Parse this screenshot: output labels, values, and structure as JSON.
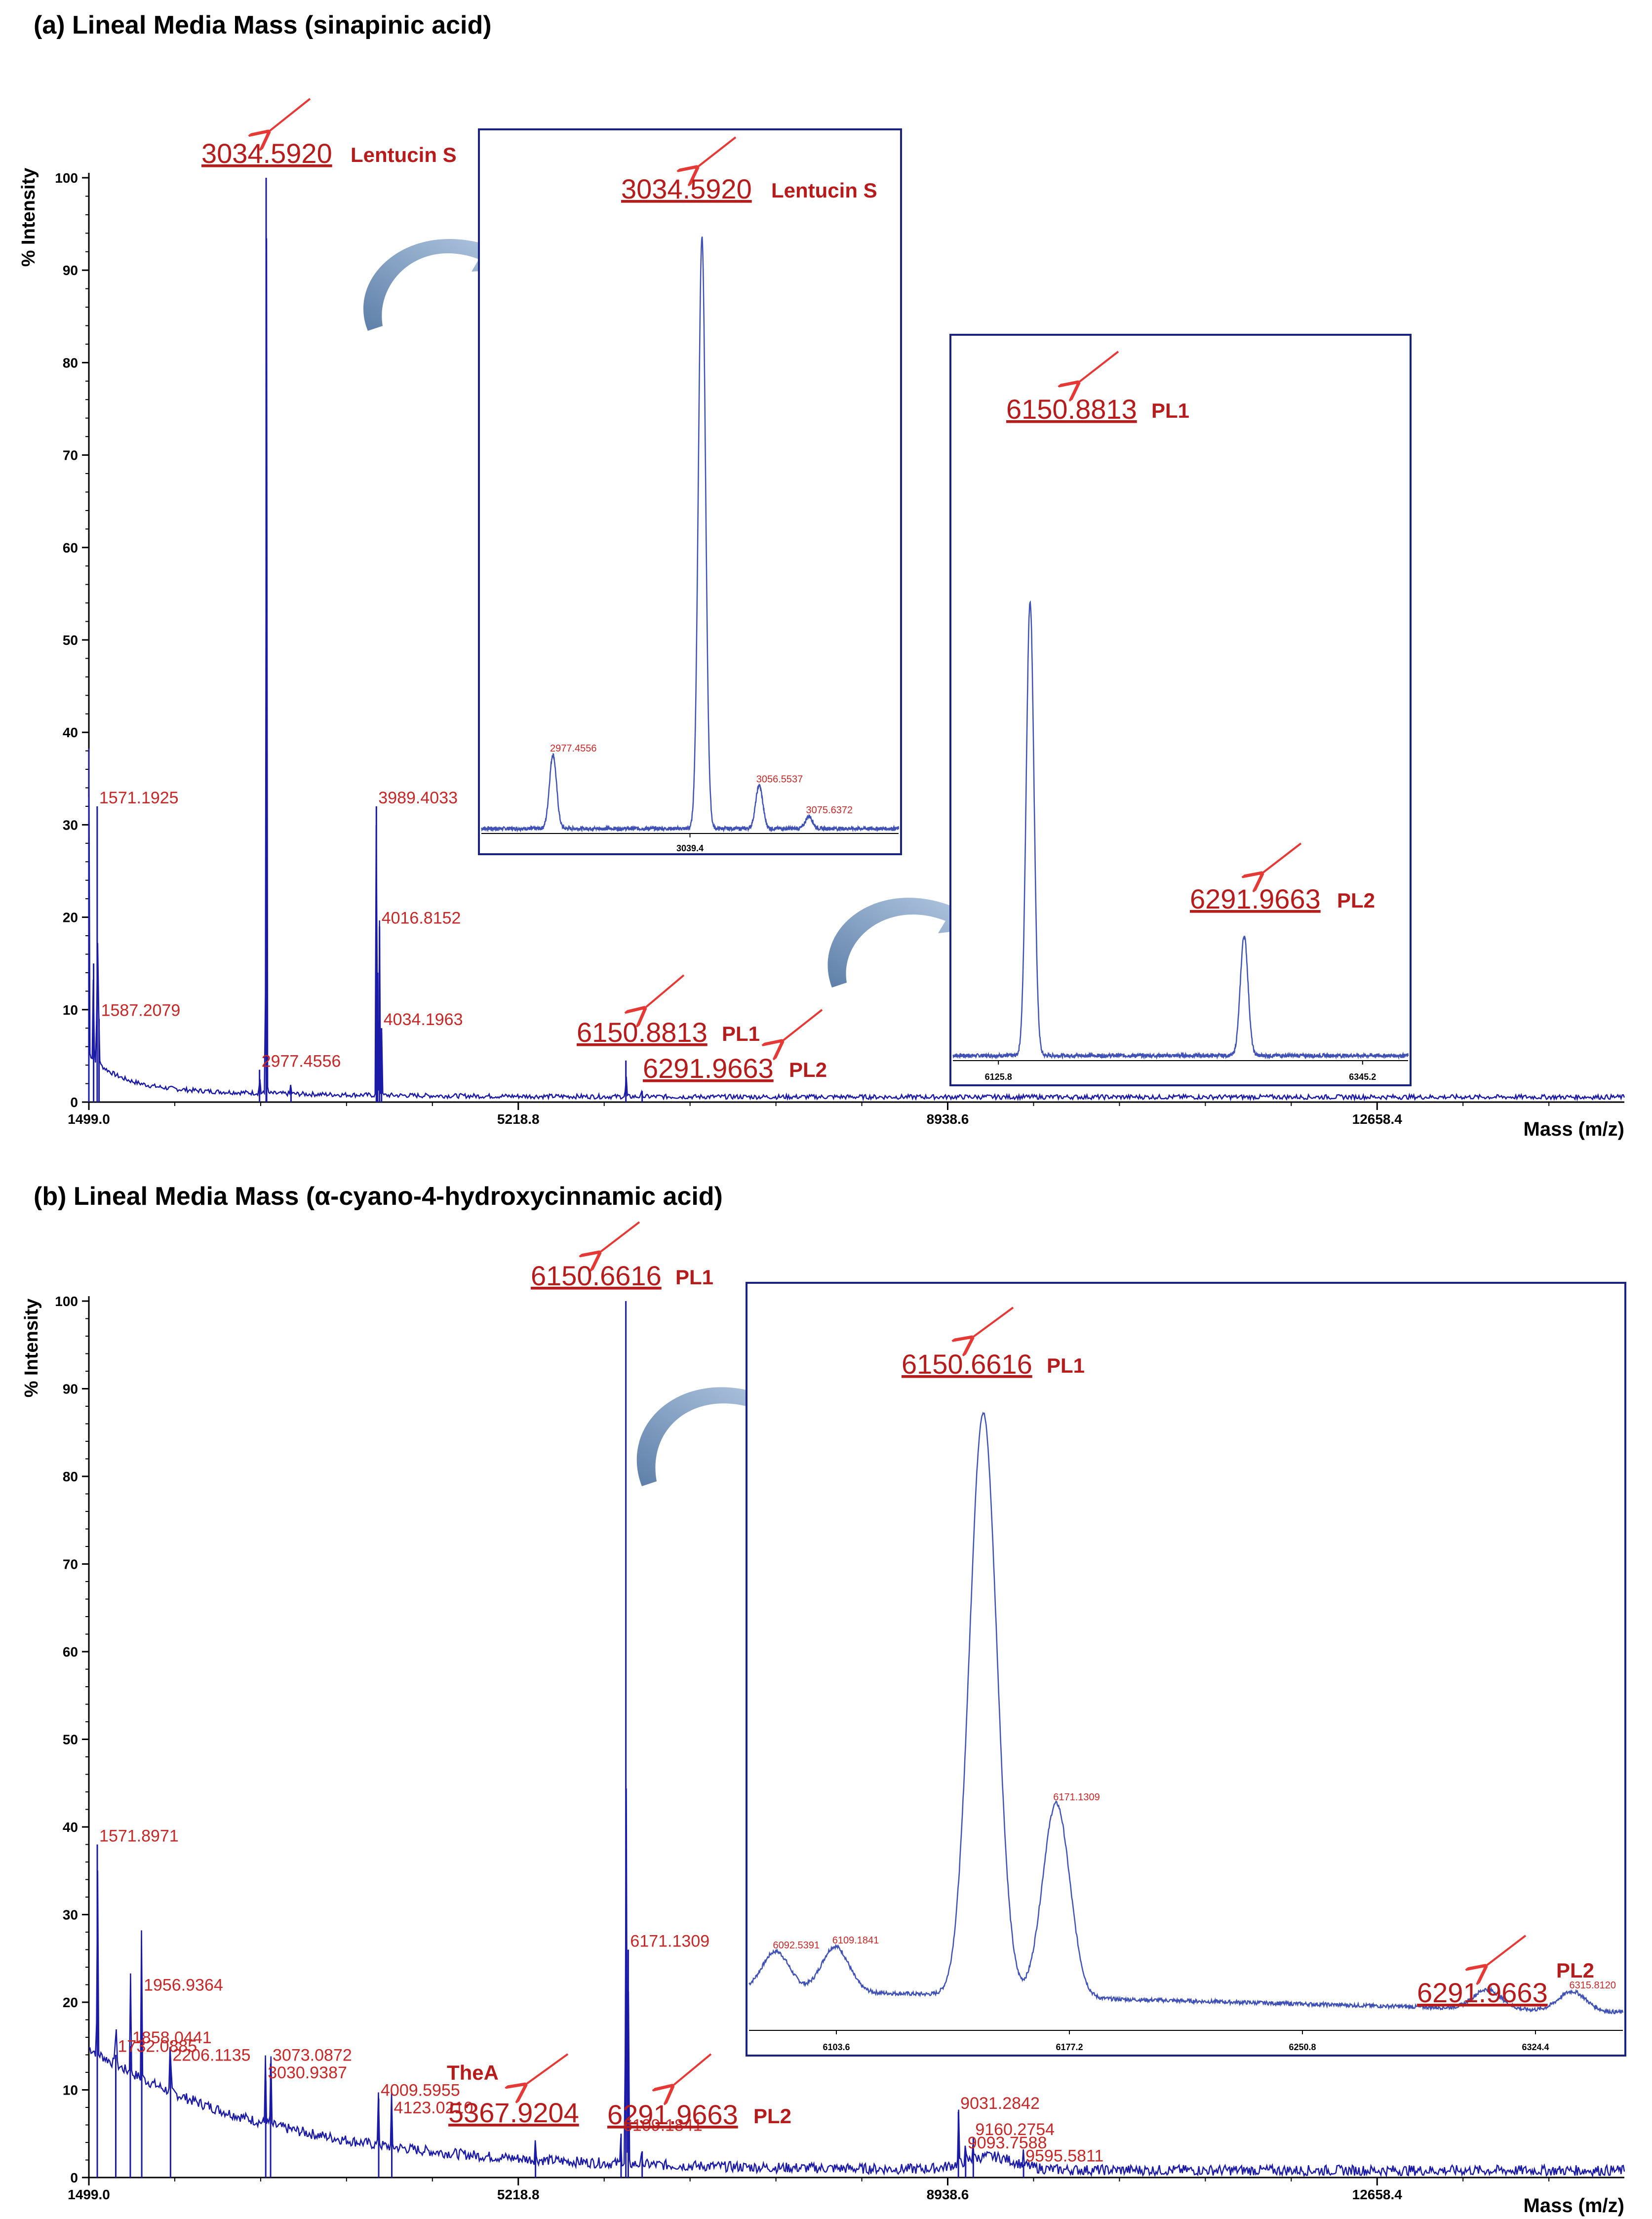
{
  "chart_data": [
    {
      "type": "line",
      "panel": "(a)",
      "title": "Lineal Media Mass (sinapinic acid)",
      "xlabel": "Mass (m/z)",
      "ylabel": "% Intensity",
      "xlim": [
        1499.0,
        14800
      ],
      "ylim": [
        0,
        100
      ],
      "xticks": [
        1499.0,
        5218.8,
        8938.6,
        12658.4
      ],
      "xtick_labels": [
        "1499.0",
        "5218.8",
        "8938.6",
        "12658.4"
      ],
      "yticks": [
        0,
        10,
        20,
        30,
        40,
        50,
        60,
        70,
        80,
        90,
        100
      ],
      "peaks": [
        {
          "x": 1499.0,
          "y": 33
        },
        {
          "x": 1540,
          "y": 15
        },
        {
          "x": 1571.1925,
          "y": 32
        },
        {
          "x": 1587.2079,
          "y": 9
        },
        {
          "x": 2977.4556,
          "y": 3.5
        },
        {
          "x": 3034.592,
          "y": 100
        },
        {
          "x": 3039.0,
          "y": 49
        },
        {
          "x": 3250,
          "y": 1.5
        },
        {
          "x": 3989.4033,
          "y": 32
        },
        {
          "x": 4000,
          "y": 14
        },
        {
          "x": 4016.8152,
          "y": 19
        },
        {
          "x": 4034.1963,
          "y": 8
        },
        {
          "x": 6150.8813,
          "y": 4.5
        },
        {
          "x": 6291.9663,
          "y": 1.2
        }
      ],
      "peak_labels": [
        {
          "text": "1571.1925",
          "x": 1571.1925,
          "y": 32
        },
        {
          "text": "1587.2079",
          "x": 1587.2079,
          "y": 9
        },
        {
          "text": "2977.4556",
          "x": 2977.4556,
          "y": 3.5
        },
        {
          "text": "3989.4033",
          "x": 3989.4033,
          "y": 32
        },
        {
          "text": "4016.8152",
          "x": 4016.8152,
          "y": 19
        },
        {
          "text": "4034.1963",
          "x": 4034.1963,
          "y": 8
        }
      ],
      "callouts": [
        {
          "value": "3034.5920",
          "name": "Lentucin S"
        },
        {
          "value": "6150.8813",
          "name": "PL1"
        },
        {
          "value": "6291.9663",
          "name": "PL2"
        }
      ],
      "insets": [
        {
          "xlim": [
            2950,
            3110
          ],
          "ylim": [
            0,
            100
          ],
          "xtick_labels": [
            "3039.4"
          ],
          "peaks": [
            {
              "x": 2977.4556,
              "y": 12
            },
            {
              "x": 3034.592,
              "y": 96
            },
            {
              "x": 3056.5537,
              "y": 7
            },
            {
              "x": 3075.6372,
              "y": 2
            }
          ],
          "peak_labels": [
            "2977.4556",
            "3056.5537",
            "3075.6372"
          ],
          "callouts": [
            {
              "value": "3034.5920",
              "name": "Lentucin S"
            }
          ]
        },
        {
          "xlim": [
            6100,
            6400
          ],
          "ylim": [
            0,
            100
          ],
          "xtick_labels": [
            "6125.8",
            "6345.2"
          ],
          "peaks": [
            {
              "x": 6150.8813,
              "y": 72
            },
            {
              "x": 6291.9663,
              "y": 19
            }
          ],
          "callouts": [
            {
              "value": "6150.8813",
              "name": "PL1"
            },
            {
              "value": "6291.9663",
              "name": "PL2"
            }
          ]
        }
      ]
    },
    {
      "type": "line",
      "panel": "(b)",
      "title": "Lineal Media Mass (α-cyano-4-hydroxycinnamic acid)",
      "xlabel": "Mass (m/z)",
      "ylabel": "% Intensity",
      "xlim": [
        1499.0,
        14800
      ],
      "ylim": [
        0,
        100
      ],
      "xticks": [
        1499.0,
        5218.8,
        8938.6,
        12658.4
      ],
      "xtick_labels": [
        "1499.0",
        "5218.8",
        "8938.6",
        "12658.4"
      ],
      "yticks": [
        0,
        10,
        20,
        30,
        40,
        50,
        60,
        70,
        80,
        90,
        100
      ],
      "peaks": [
        {
          "x": 1571.8971,
          "y": 38
        },
        {
          "x": 1732.0885,
          "y": 14
        },
        {
          "x": 1858.0441,
          "y": 15
        },
        {
          "x": 1956.9364,
          "y": 21
        },
        {
          "x": 2206.1135,
          "y": 13
        },
        {
          "x": 3030.9387,
          "y": 11
        },
        {
          "x": 3073.0872,
          "y": 13
        },
        {
          "x": 4009.5955,
          "y": 9
        },
        {
          "x": 4123.021,
          "y": 7
        },
        {
          "x": 5367.9204,
          "y": 3
        },
        {
          "x": 6109.1841,
          "y": 5
        },
        {
          "x": 6150.6616,
          "y": 100
        },
        {
          "x": 6171.1309,
          "y": 26
        },
        {
          "x": 6291.9663,
          "y": 3
        },
        {
          "x": 9031.2842,
          "y": 7.5
        },
        {
          "x": 9160.2754,
          "y": 4.5
        },
        {
          "x": 9093.7588,
          "y": 3
        },
        {
          "x": 9595.5811,
          "y": 1.5
        }
      ],
      "peak_labels": [
        {
          "text": "1571.8971",
          "x": 1571.8971,
          "y": 38
        },
        {
          "text": "1956.9364",
          "x": 1956.9364,
          "y": 21
        },
        {
          "text": "1858.0441",
          "x": 1858.0441,
          "y": 15
        },
        {
          "text": "1732.0885",
          "x": 1732.0885,
          "y": 14
        },
        {
          "text": "2206.1135",
          "x": 2206.1135,
          "y": 13
        },
        {
          "text": "3073.0872",
          "x": 3073.0872,
          "y": 13
        },
        {
          "text": "3030.9387",
          "x": 3030.9387,
          "y": 11
        },
        {
          "text": "4009.5955",
          "x": 4009.5955,
          "y": 9
        },
        {
          "text": "4123.0210",
          "x": 4123.021,
          "y": 7
        },
        {
          "text": "6171.1309",
          "x": 6171.1309,
          "y": 26
        },
        {
          "text": "6109.1841",
          "x": 6109.1841,
          "y": 5
        },
        {
          "text": "9031.2842",
          "x": 9031.2842,
          "y": 7.5
        },
        {
          "text": "9160.2754",
          "x": 9160.2754,
          "y": 4.5
        },
        {
          "text": "9093.7588",
          "x": 9093.7588,
          "y": 3
        },
        {
          "text": "9595.5811",
          "x": 9595.5811,
          "y": 1.5
        }
      ],
      "callouts": [
        {
          "value": "6150.6616",
          "name": "PL1"
        },
        {
          "value": "5367.9204",
          "name": "TheA"
        },
        {
          "value": "6291.9663",
          "name": "PL2"
        }
      ],
      "insets": [
        {
          "xlim": [
            6085,
            6330
          ],
          "ylim": [
            0,
            100
          ],
          "xtick_labels": [
            "6103.6",
            "6177.2",
            "6250.8",
            "6324.4"
          ],
          "peaks": [
            {
              "x": 6092.5391,
              "y": 6
            },
            {
              "x": 6109.1841,
              "y": 7
            },
            {
              "x": 6150.6616,
              "y": 90
            },
            {
              "x": 6171.1309,
              "y": 30
            },
            {
              "x": 6291.9663,
              "y": 3
            },
            {
              "x": 6315.812,
              "y": 3
            }
          ],
          "peak_labels": [
            "6092.5391",
            "6109.1841",
            "6171.1309",
            "6315.8120"
          ],
          "callouts": [
            {
              "value": "6150.6616",
              "name": "PL1"
            },
            {
              "value": "6291.9663",
              "name": "PL2"
            }
          ]
        }
      ]
    }
  ]
}
